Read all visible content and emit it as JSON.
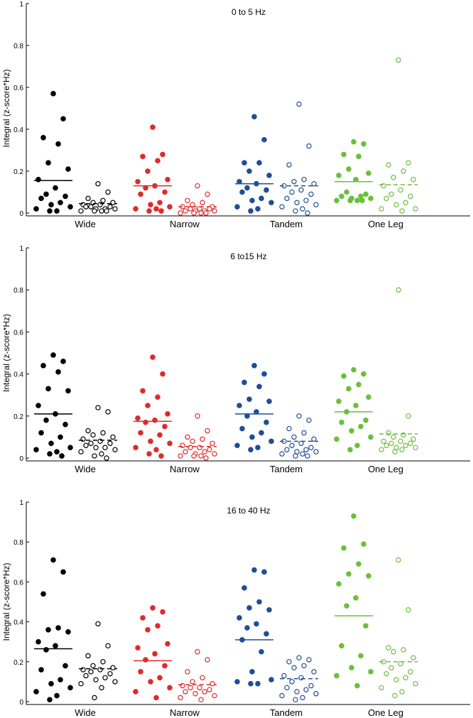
{
  "colors": {
    "Wide": "#000000",
    "Narrow": "#e02a2a",
    "Tandem": "#1f4e99",
    "One Leg": "#6abf3c"
  },
  "chart_data": [
    {
      "type": "scatter",
      "title": "0 to 5 Hz",
      "xlabel": "",
      "ylabel": "Integral (z-score*Hz)",
      "ylim": [
        0,
        1
      ],
      "yticks": [
        0,
        0.2,
        0.4,
        0.6,
        0.8,
        1
      ],
      "ytick_labels": [
        "0",
        "0.2",
        "0.4",
        "0.6",
        "0.8",
        "1"
      ],
      "categories": [
        "Wide",
        "Narrow",
        "Tandem",
        "One Leg"
      ],
      "series": [
        {
          "name": "Wide filled",
          "group": "Wide",
          "filled": true,
          "mean": 0.155,
          "values": [
            0.57,
            0.45,
            0.36,
            0.33,
            0.24,
            0.21,
            0.16,
            0.12,
            0.09,
            0.08,
            0.07,
            0.05,
            0.04,
            0.03,
            0.02,
            0.01,
            0.01
          ]
        },
        {
          "name": "Wide open",
          "group": "Wide",
          "filled": false,
          "mean": 0.045,
          "values": [
            0.14,
            0.1,
            0.07,
            0.06,
            0.05,
            0.05,
            0.04,
            0.04,
            0.03,
            0.03,
            0.03,
            0.02,
            0.02,
            0.02,
            0.01,
            0.01,
            0.01,
            0.01
          ]
        },
        {
          "name": "Narrow filled",
          "group": "Narrow",
          "filled": true,
          "mean": 0.13,
          "values": [
            0.41,
            0.28,
            0.27,
            0.25,
            0.2,
            0.16,
            0.15,
            0.13,
            0.12,
            0.1,
            0.09,
            0.05,
            0.04,
            0.03,
            0.02,
            0.02,
            0.01,
            0.01
          ]
        },
        {
          "name": "Narrow open",
          "group": "Narrow",
          "filled": false,
          "mean": 0.03,
          "values": [
            0.13,
            0.09,
            0.06,
            0.05,
            0.04,
            0.03,
            0.03,
            0.02,
            0.02,
            0.02,
            0.01,
            0.01,
            0.01,
            0.01,
            0.0,
            0.0,
            0.0,
            0.0
          ]
        },
        {
          "name": "Tandem filled",
          "group": "Tandem",
          "filled": true,
          "mean": 0.14,
          "values": [
            0.46,
            0.35,
            0.24,
            0.24,
            0.2,
            0.18,
            0.15,
            0.14,
            0.12,
            0.11,
            0.1,
            0.07,
            0.06,
            0.05,
            0.03,
            0.02,
            0.01
          ]
        },
        {
          "name": "Tandem open",
          "group": "Tandem",
          "filled": false,
          "mean": 0.13,
          "values": [
            0.52,
            0.32,
            0.23,
            0.16,
            0.15,
            0.14,
            0.13,
            0.11,
            0.1,
            0.09,
            0.07,
            0.06,
            0.05,
            0.04,
            0.03,
            0.02,
            0.01,
            0.0
          ]
        },
        {
          "name": "One Leg filled",
          "group": "One Leg",
          "filled": true,
          "mean": 0.15,
          "values": [
            0.34,
            0.33,
            0.28,
            0.27,
            0.21,
            0.19,
            0.18,
            0.16,
            0.1,
            0.09,
            0.08,
            0.08,
            0.07,
            0.07,
            0.06,
            0.06,
            0.06,
            0.06
          ]
        },
        {
          "name": "One Leg open",
          "group": "One Leg",
          "filled": false,
          "mean": 0.135,
          "values": [
            0.73,
            0.24,
            0.23,
            0.2,
            0.17,
            0.16,
            0.13,
            0.11,
            0.09,
            0.08,
            0.07,
            0.05,
            0.04,
            0.02,
            0.02,
            0.01
          ]
        }
      ]
    },
    {
      "type": "scatter",
      "title": "6 to15 Hz",
      "xlabel": "",
      "ylabel": "Integral (z-score*Hz)",
      "ylim": [
        0,
        1
      ],
      "yticks": [
        0,
        0.2,
        0.4,
        0.6,
        0.8,
        1
      ],
      "ytick_labels": [
        "0",
        "0.2",
        "0.4",
        "0.6",
        "0.8",
        "1"
      ],
      "categories": [
        "Wide",
        "Narrow",
        "Tandem",
        "One Leg"
      ],
      "series": [
        {
          "name": "Wide filled",
          "group": "Wide",
          "filled": true,
          "mean": 0.21,
          "values": [
            0.49,
            0.46,
            0.44,
            0.41,
            0.33,
            0.32,
            0.25,
            0.21,
            0.18,
            0.16,
            0.12,
            0.1,
            0.07,
            0.05,
            0.04,
            0.03,
            0.02,
            0.01
          ]
        },
        {
          "name": "Wide open",
          "group": "Wide",
          "filled": false,
          "mean": 0.085,
          "values": [
            0.24,
            0.22,
            0.13,
            0.12,
            0.11,
            0.1,
            0.09,
            0.08,
            0.07,
            0.07,
            0.06,
            0.05,
            0.05,
            0.04,
            0.03,
            0.02,
            0.01,
            0.0
          ]
        },
        {
          "name": "Narrow filled",
          "group": "Narrow",
          "filled": true,
          "mean": 0.175,
          "values": [
            0.48,
            0.4,
            0.32,
            0.29,
            0.25,
            0.21,
            0.19,
            0.18,
            0.17,
            0.15,
            0.12,
            0.11,
            0.08,
            0.07,
            0.05,
            0.04,
            0.02,
            0.01
          ]
        },
        {
          "name": "Narrow open",
          "group": "Narrow",
          "filled": false,
          "mean": 0.055,
          "values": [
            0.2,
            0.13,
            0.1,
            0.09,
            0.08,
            0.07,
            0.06,
            0.05,
            0.05,
            0.04,
            0.03,
            0.03,
            0.02,
            0.02,
            0.01,
            0.01,
            0.01,
            0.0
          ]
        },
        {
          "name": "Tandem filled",
          "group": "Tandem",
          "filled": true,
          "mean": 0.21,
          "values": [
            0.44,
            0.4,
            0.36,
            0.34,
            0.28,
            0.27,
            0.25,
            0.22,
            0.2,
            0.17,
            0.14,
            0.12,
            0.1,
            0.08,
            0.06,
            0.05,
            0.04
          ]
        },
        {
          "name": "Tandem open",
          "group": "Tandem",
          "filled": false,
          "mean": 0.08,
          "values": [
            0.2,
            0.18,
            0.14,
            0.12,
            0.1,
            0.09,
            0.08,
            0.07,
            0.06,
            0.05,
            0.04,
            0.04,
            0.03,
            0.03,
            0.02,
            0.02,
            0.01,
            0.01
          ]
        },
        {
          "name": "One Leg filled",
          "group": "One Leg",
          "filled": true,
          "mean": 0.22,
          "values": [
            0.42,
            0.4,
            0.39,
            0.35,
            0.33,
            0.29,
            0.27,
            0.25,
            0.22,
            0.18,
            0.17,
            0.15,
            0.13,
            0.1,
            0.09,
            0.06,
            0.04
          ]
        },
        {
          "name": "One Leg open",
          "group": "One Leg",
          "filled": false,
          "mean": 0.115,
          "values": [
            0.8,
            0.2,
            0.12,
            0.11,
            0.1,
            0.09,
            0.08,
            0.08,
            0.07,
            0.07,
            0.06,
            0.06,
            0.05,
            0.05,
            0.04,
            0.04,
            0.03
          ]
        }
      ]
    },
    {
      "type": "scatter",
      "title": "16 to 40 Hz",
      "xlabel": "",
      "ylabel": "Integral (z-score*Hz)",
      "ylim": [
        0,
        1
      ],
      "yticks": [
        0,
        0.2,
        0.4,
        0.6,
        0.8,
        1
      ],
      "ytick_labels": [
        "0",
        "0.2",
        "0.4",
        "0.6",
        "0.8",
        "1"
      ],
      "categories": [
        "Wide",
        "Narrow",
        "Tandem",
        "One Leg"
      ],
      "series": [
        {
          "name": "Wide filled",
          "group": "Wide",
          "filled": true,
          "mean": 0.265,
          "values": [
            0.71,
            0.65,
            0.54,
            0.37,
            0.36,
            0.35,
            0.3,
            0.28,
            0.26,
            0.18,
            0.16,
            0.11,
            0.09,
            0.07,
            0.05,
            0.03,
            0.01
          ]
        },
        {
          "name": "Wide open",
          "group": "Wide",
          "filled": false,
          "mean": 0.165,
          "values": [
            0.39,
            0.28,
            0.23,
            0.2,
            0.18,
            0.17,
            0.16,
            0.16,
            0.15,
            0.14,
            0.13,
            0.12,
            0.11,
            0.1,
            0.09,
            0.07,
            0.02
          ]
        },
        {
          "name": "Narrow filled",
          "group": "Narrow",
          "filled": true,
          "mean": 0.205,
          "values": [
            0.47,
            0.45,
            0.42,
            0.38,
            0.36,
            0.29,
            0.27,
            0.24,
            0.21,
            0.18,
            0.15,
            0.12,
            0.1,
            0.07,
            0.05,
            0.02
          ]
        },
        {
          "name": "Narrow open",
          "group": "Narrow",
          "filled": false,
          "mean": 0.085,
          "values": [
            0.25,
            0.21,
            0.15,
            0.12,
            0.1,
            0.09,
            0.08,
            0.07,
            0.07,
            0.06,
            0.05,
            0.05,
            0.04,
            0.03,
            0.02,
            0.01
          ]
        },
        {
          "name": "Tandem filled",
          "group": "Tandem",
          "filled": true,
          "mean": 0.31,
          "values": [
            0.66,
            0.65,
            0.57,
            0.5,
            0.47,
            0.46,
            0.42,
            0.39,
            0.37,
            0.34,
            0.31,
            0.25,
            0.15,
            0.11,
            0.1,
            0.09,
            0.09
          ]
        },
        {
          "name": "Tandem open",
          "group": "Tandem",
          "filled": false,
          "mean": 0.115,
          "values": [
            0.22,
            0.21,
            0.2,
            0.18,
            0.17,
            0.15,
            0.13,
            0.12,
            0.1,
            0.08,
            0.07,
            0.06,
            0.05,
            0.04,
            0.03,
            0.02,
            0.01
          ]
        },
        {
          "name": "One Leg filled",
          "group": "One Leg",
          "filled": true,
          "mean": 0.43,
          "values": [
            0.93,
            0.79,
            0.77,
            0.69,
            0.64,
            0.63,
            0.59,
            0.52,
            0.48,
            0.38,
            0.28,
            0.23,
            0.17,
            0.15,
            0.13,
            0.08
          ]
        },
        {
          "name": "One Leg open",
          "group": "One Leg",
          "filled": false,
          "mean": 0.2,
          "values": [
            0.71,
            0.46,
            0.27,
            0.26,
            0.25,
            0.22,
            0.2,
            0.19,
            0.17,
            0.15,
            0.14,
            0.12,
            0.11,
            0.09,
            0.07,
            0.05,
            0.03
          ]
        }
      ]
    }
  ]
}
